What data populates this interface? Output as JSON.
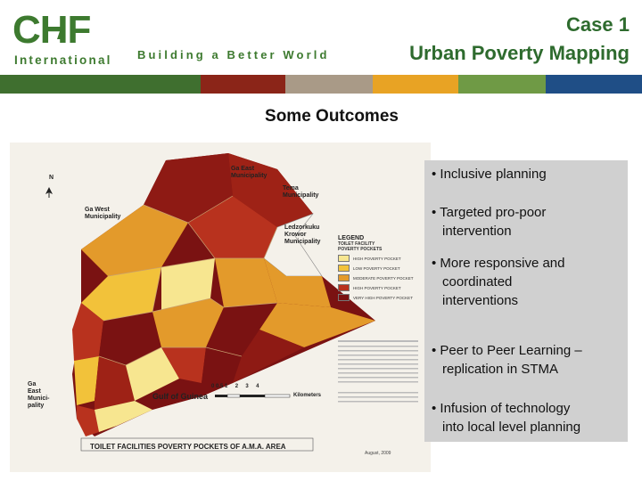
{
  "header": {
    "logo_text": "CHF",
    "logo_sub": "International",
    "tagline": "Building a Better World",
    "case_label": "Case 1",
    "title": "Urban Poverty Mapping"
  },
  "colors": {
    "brand_green": "#2e6b2e",
    "bars": [
      "#3f6f2f",
      "#8b2518",
      "#a99a87",
      "#e8a324",
      "#6f9a45",
      "#1f4e86"
    ]
  },
  "subtitle": "Some Outcomes",
  "map": {
    "places": {
      "ga_east_top": "Ga East\nMunicipality",
      "tema": "Tema\nMunicipality",
      "ga_west": "Ga West\nMunicipality",
      "ledzokuku": "Ledzorkuku\nKrowor\nMunicipality",
      "ga_east_left": "Ga\nEast\nMunici-\npality",
      "gulf": "Gulf of Guinea"
    },
    "north": "N",
    "legend": {
      "title": "LEGEND",
      "subtitle": "TOILET FACILITY\nPOVERTY POCKETS",
      "items": [
        {
          "label": "HIGH POVERTY POCKET",
          "color": "#f7e690"
        },
        {
          "label": "LOW POVERTY POCKET",
          "color": "#f2c23a"
        },
        {
          "label": "MODERATE POVERTY POCKET",
          "color": "#e39a2b"
        },
        {
          "label": "HIGH POVERTY POCKET",
          "color": "#b8321e"
        },
        {
          "label": "VERY HIGH POVERTY POCKET",
          "color": "#7a1212"
        }
      ]
    },
    "scale_label": "Kilometers",
    "scale_ticks": [
      "0",
      "0.5",
      "1",
      "2",
      "3",
      "4"
    ],
    "caption": "TOILET FACILITIES POVERTY POCKETS OF A.M.A. AREA",
    "date": "August, 2009"
  },
  "outcomes": [
    {
      "line1": "• Inclusive planning",
      "line2": ""
    },
    {
      "line1": "• Targeted pro-poor",
      "line2": "intervention"
    },
    {
      "line1": "•  More responsive  and",
      "line2": "coordinated",
      "line3": "interventions"
    },
    {
      "line1": "• Peer to Peer Learning –",
      "line2": "replication in STMA"
    },
    {
      "line1": "•  Infusion of technology",
      "line2": "into local level planning"
    }
  ]
}
